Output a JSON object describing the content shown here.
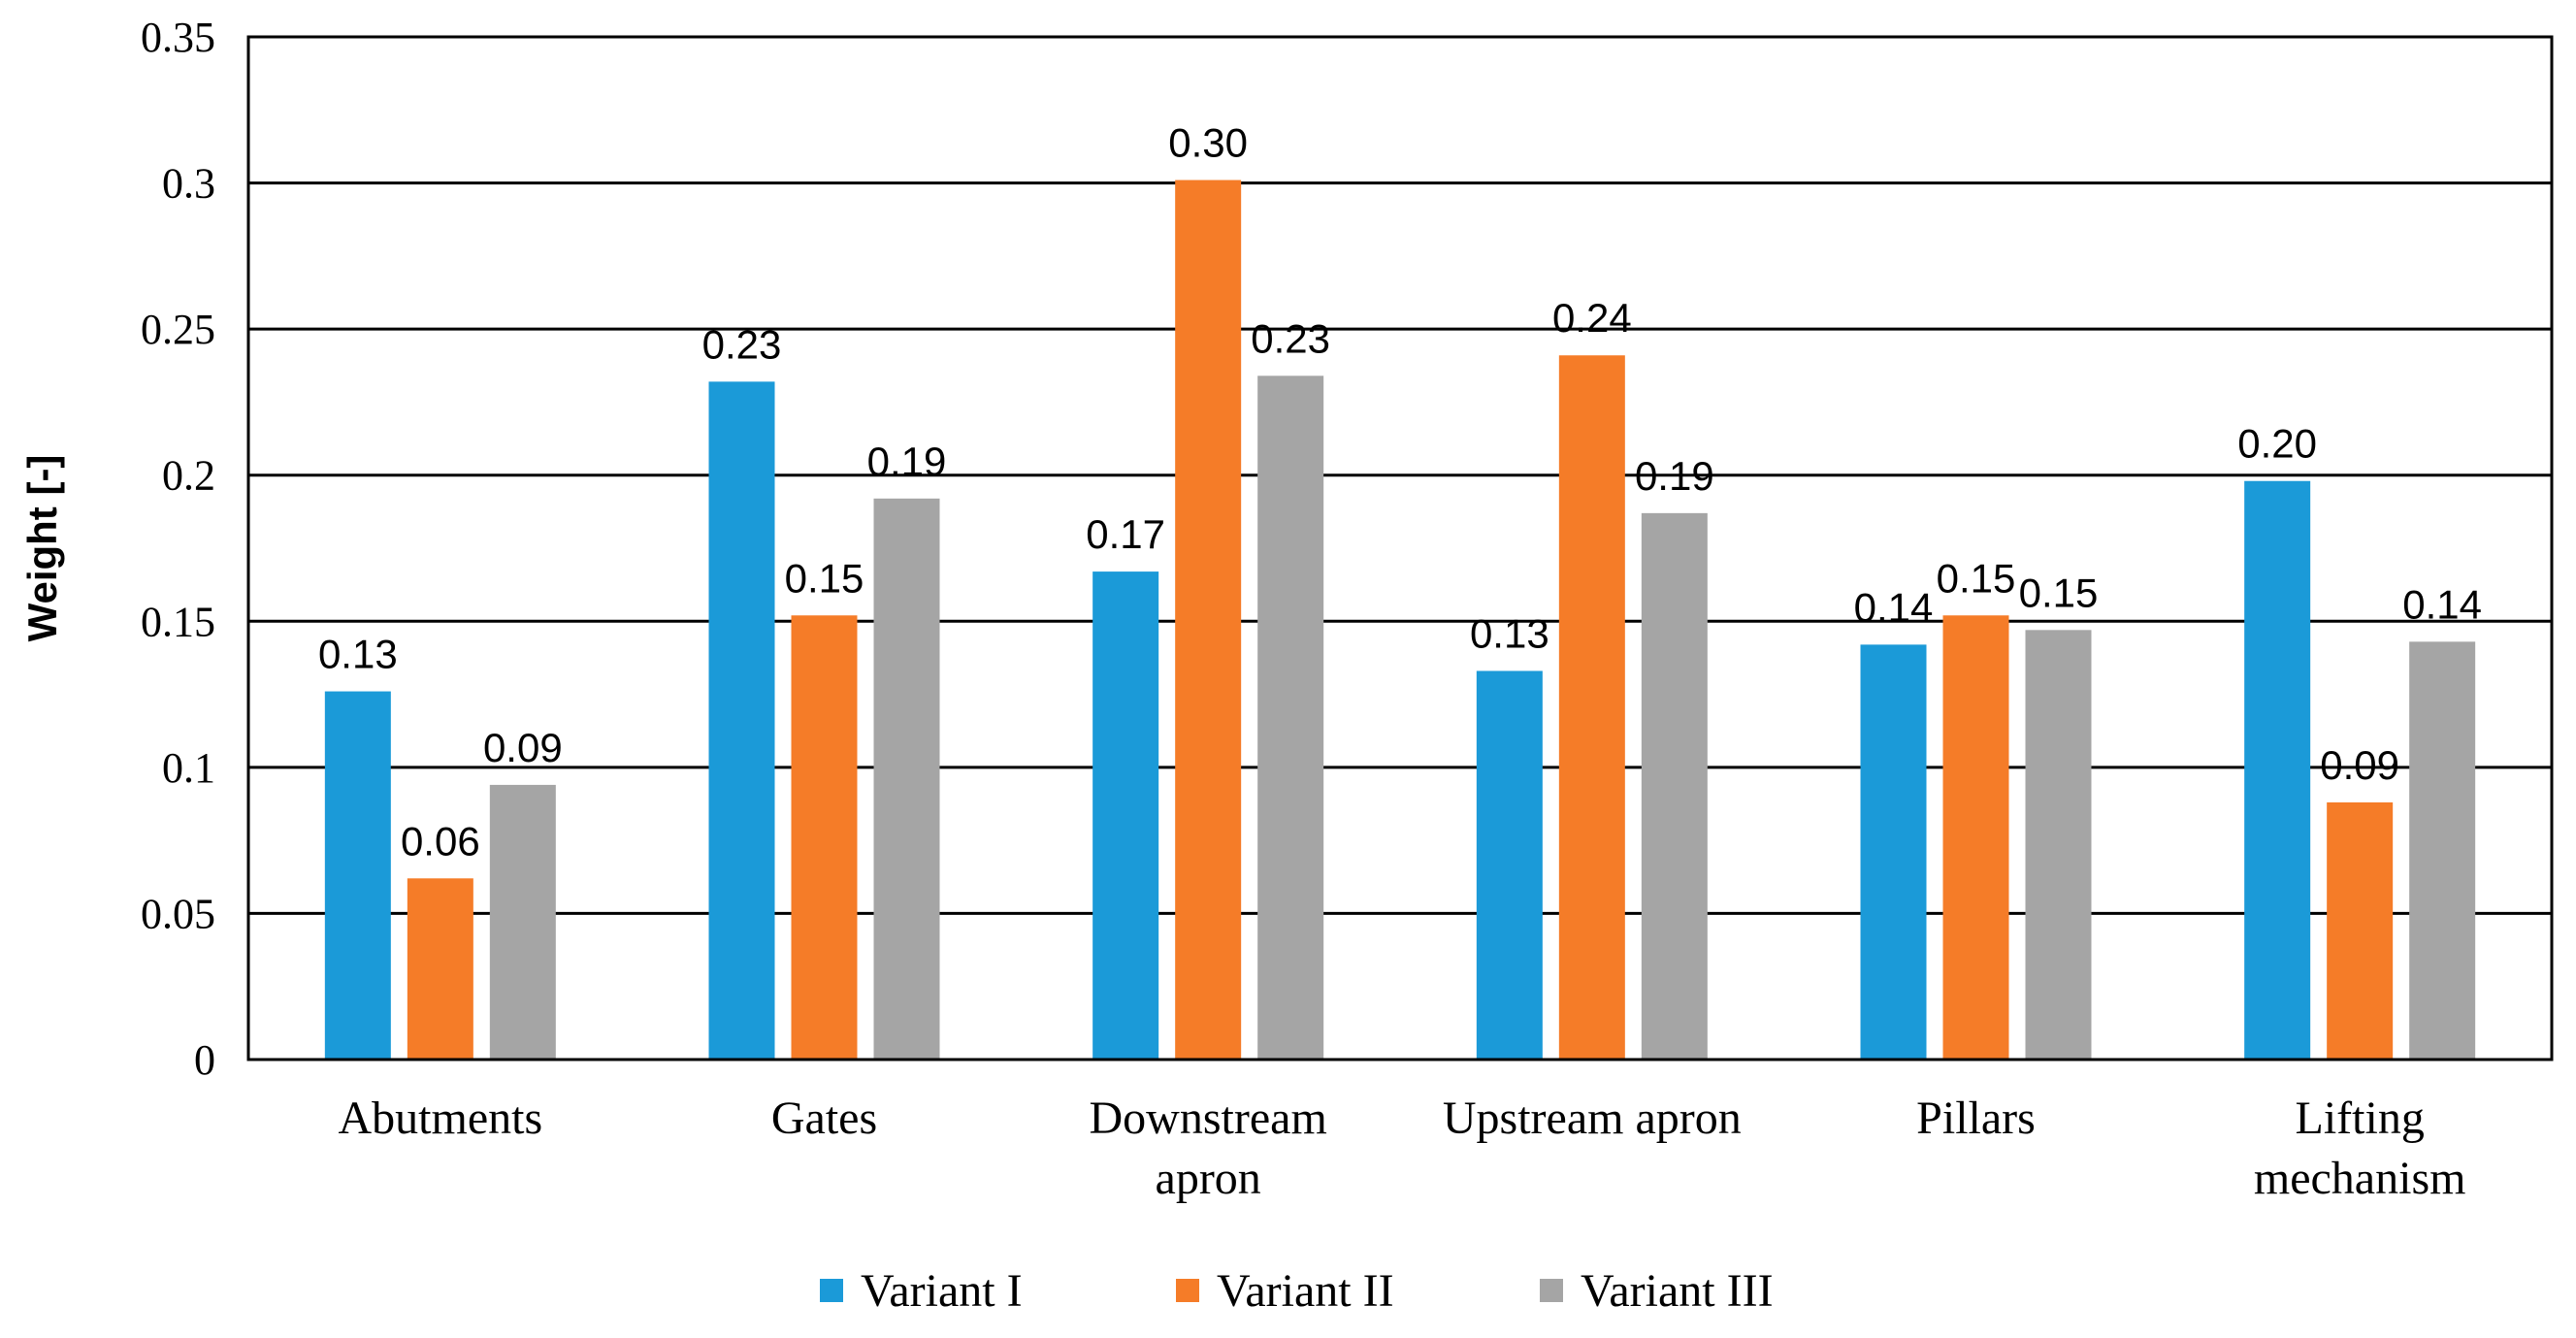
{
  "chart_data": {
    "type": "bar",
    "title": "",
    "xlabel": "",
    "ylabel": "Weight [-]",
    "ylim": [
      0,
      0.35
    ],
    "yticks": [
      "0",
      "0.05",
      "0.1",
      "0.15",
      "0.2",
      "0.25",
      "0.3",
      "0.35"
    ],
    "grid": true,
    "legend_position": "bottom",
    "categories": [
      [
        "Abutments"
      ],
      [
        "Gates"
      ],
      [
        "Downstream",
        "apron"
      ],
      [
        "Upstream apron"
      ],
      [
        "Pillars"
      ],
      [
        "Lifting",
        "mechanism"
      ]
    ],
    "series": [
      {
        "name": "Variant I",
        "color": "#1b9ad8",
        "values": [
          0.126,
          0.232,
          0.167,
          0.133,
          0.142,
          0.198
        ],
        "labels": [
          "0.13",
          "0.23",
          "0.17",
          "0.13",
          "0.14",
          "0.20"
        ]
      },
      {
        "name": "Variant II",
        "color": "#f57c28",
        "values": [
          0.062,
          0.152,
          0.301,
          0.241,
          0.152,
          0.088
        ],
        "labels": [
          "0.06",
          "0.15",
          "0.30",
          "0.24",
          "0.15",
          "0.09"
        ]
      },
      {
        "name": "Variant III",
        "color": "#a5a5a5",
        "values": [
          0.094,
          0.192,
          0.234,
          0.187,
          0.147,
          0.143
        ],
        "labels": [
          "0.09",
          "0.19",
          "0.23",
          "0.19",
          "0.15",
          "0.14"
        ]
      }
    ]
  }
}
